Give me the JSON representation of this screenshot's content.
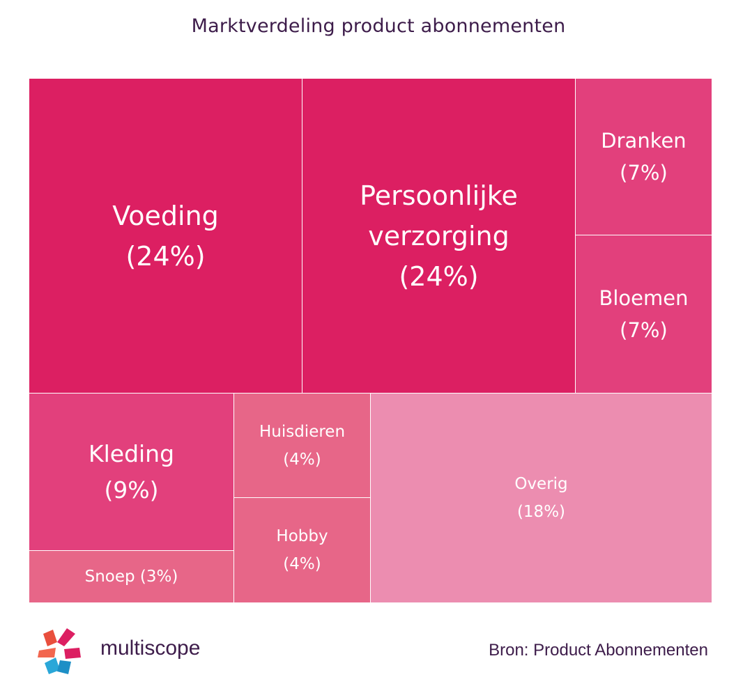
{
  "chart_data": {
    "type": "treemap",
    "title": "Marktverdeling product abonnementen",
    "items": [
      {
        "name": "Voeding",
        "value_label": "(24%)",
        "value": 24,
        "color": "#dc1f62"
      },
      {
        "name": "Persoonlijke verzorging",
        "value_label": "(24%)",
        "value": 24,
        "color": "#dc1f62"
      },
      {
        "name": "Dranken",
        "value_label": "(7%)",
        "value": 7,
        "color": "#e2407c"
      },
      {
        "name": "Bloemen",
        "value_label": "(7%)",
        "value": 7,
        "color": "#e2407c"
      },
      {
        "name": "Kleding",
        "value_label": "(9%)",
        "value": 9,
        "color": "#e2407c"
      },
      {
        "name": "Snoep (3%)",
        "value_label": "",
        "value": 3,
        "color": "#e76688"
      },
      {
        "name": "Huisdieren",
        "value_label": "(4%)",
        "value": 4,
        "color": "#e76688"
      },
      {
        "name": "Hobby",
        "value_label": "(4%)",
        "value": 4,
        "color": "#e76688"
      },
      {
        "name": "Overig",
        "value_label": "(18%)",
        "value": 18,
        "color": "#ec8db0"
      }
    ]
  },
  "footer": {
    "brand": "multiscope",
    "source": "Bron: Product Abonnementen"
  }
}
